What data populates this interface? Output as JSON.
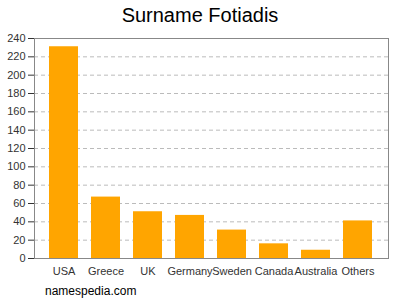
{
  "chart_data": {
    "type": "bar",
    "title": "Surname Fotiadis",
    "caption": "namespedia.com",
    "categories": [
      "USA",
      "Greece",
      "UK",
      "Germany",
      "Sweden",
      "Canada",
      "Australia",
      "Others"
    ],
    "values": [
      231,
      67,
      51,
      47,
      31,
      16,
      9,
      41
    ],
    "color": "#ffa500",
    "ylim": [
      0,
      240
    ],
    "yticks": [
      0,
      20,
      40,
      60,
      80,
      100,
      120,
      140,
      160,
      180,
      200,
      220,
      240
    ],
    "grid": true
  }
}
